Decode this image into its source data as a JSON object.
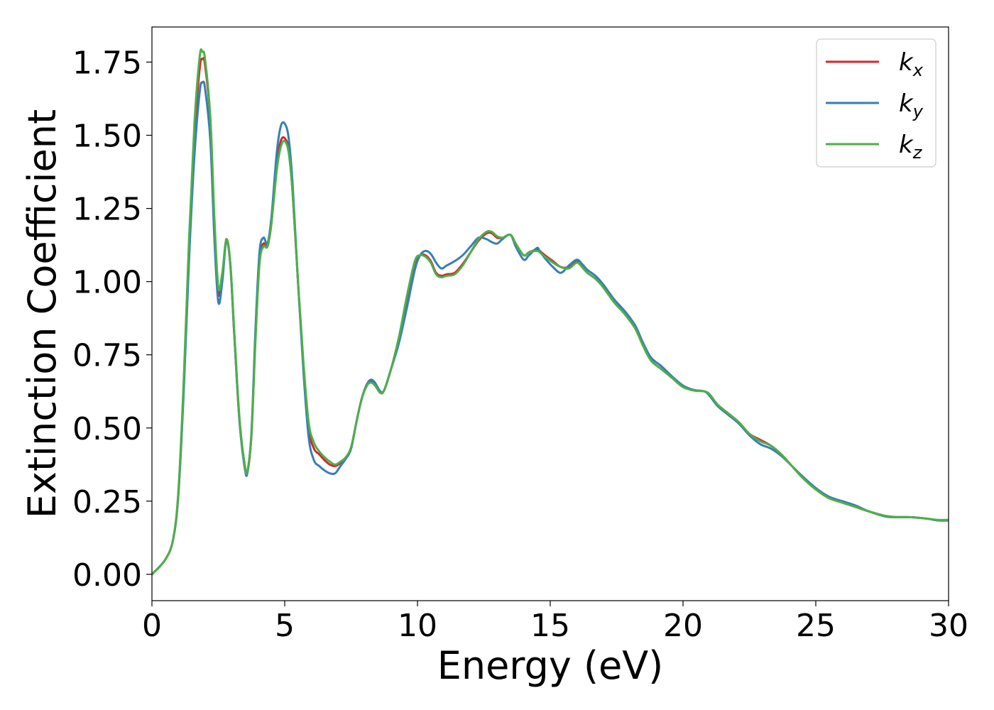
{
  "chart_data": {
    "type": "line",
    "title": "",
    "xlabel": "Energy (eV)",
    "ylabel": "Extinction Coefficient",
    "xlim": [
      0,
      30
    ],
    "ylim": [
      -0.09,
      1.87
    ],
    "xticks": [
      0,
      5,
      10,
      15,
      20,
      25,
      30
    ],
    "xtick_labels": [
      "0",
      "5",
      "10",
      "15",
      "20",
      "25",
      "30"
    ],
    "yticks": [
      0.0,
      0.25,
      0.5,
      0.75,
      1.0,
      1.25,
      1.5,
      1.75
    ],
    "ytick_labels": [
      "0.00",
      "0.25",
      "0.50",
      "0.75",
      "1.00",
      "1.25",
      "1.50",
      "1.75"
    ],
    "grid": false,
    "legend_position": "top-right",
    "series": [
      {
        "name": "k_x",
        "label_base": "k",
        "label_sub": "x",
        "color": "#d62728",
        "x": [
          0,
          0.5,
          0.8,
          1.0,
          1.2,
          1.4,
          1.6,
          1.8,
          1.9,
          2.0,
          2.2,
          2.35,
          2.5,
          2.65,
          2.8,
          2.95,
          3.1,
          3.3,
          3.5,
          3.6,
          3.75,
          3.9,
          4.05,
          4.2,
          4.35,
          4.5,
          4.7,
          4.85,
          5.0,
          5.15,
          5.3,
          5.5,
          5.7,
          5.9,
          6.1,
          6.3,
          6.5,
          6.7,
          6.9,
          7.1,
          7.3,
          7.5,
          7.7,
          7.9,
          8.1,
          8.25,
          8.4,
          8.6,
          8.75,
          9.0,
          9.3,
          9.6,
          9.9,
          10.1,
          10.3,
          10.5,
          10.7,
          10.9,
          11.1,
          11.4,
          11.7,
          12.0,
          12.3,
          12.6,
          12.8,
          13.0,
          13.2,
          13.5,
          13.7,
          14.0,
          14.2,
          14.5,
          14.6,
          14.8,
          15.1,
          15.4,
          15.7,
          16.0,
          16.2,
          16.4,
          16.7,
          17.0,
          17.4,
          17.8,
          18.2,
          18.5,
          18.8,
          19.2,
          19.6,
          20.0,
          20.4,
          20.8,
          21.0,
          21.3,
          21.7,
          22.1,
          22.5,
          22.9,
          23.3,
          23.7,
          24.1,
          24.5,
          25.0,
          25.5,
          26.0,
          26.5,
          27.0,
          27.6,
          28.0,
          28.6,
          29.2,
          29.6,
          30.0
        ],
        "y": [
          0.0,
          0.05,
          0.12,
          0.28,
          0.65,
          1.12,
          1.5,
          1.73,
          1.76,
          1.74,
          1.55,
          1.2,
          0.96,
          1.02,
          1.14,
          1.06,
          0.82,
          0.52,
          0.37,
          0.35,
          0.48,
          0.82,
          1.08,
          1.13,
          1.12,
          1.2,
          1.4,
          1.48,
          1.49,
          1.45,
          1.3,
          1.0,
          0.72,
          0.5,
          0.43,
          0.41,
          0.39,
          0.375,
          0.37,
          0.38,
          0.395,
          0.43,
          0.52,
          0.6,
          0.65,
          0.66,
          0.65,
          0.62,
          0.63,
          0.7,
          0.8,
          0.93,
          1.06,
          1.09,
          1.09,
          1.07,
          1.03,
          1.02,
          1.025,
          1.03,
          1.06,
          1.1,
          1.14,
          1.165,
          1.165,
          1.15,
          1.15,
          1.16,
          1.13,
          1.09,
          1.1,
          1.11,
          1.105,
          1.09,
          1.07,
          1.05,
          1.05,
          1.07,
          1.05,
          1.03,
          1.01,
          0.98,
          0.93,
          0.89,
          0.84,
          0.78,
          0.73,
          0.7,
          0.67,
          0.64,
          0.63,
          0.625,
          0.615,
          0.58,
          0.55,
          0.52,
          0.48,
          0.46,
          0.44,
          0.41,
          0.37,
          0.33,
          0.29,
          0.26,
          0.245,
          0.23,
          0.215,
          0.2,
          0.196,
          0.195,
          0.19,
          0.185,
          0.185
        ]
      },
      {
        "name": "k_y",
        "label_base": "k",
        "label_sub": "y",
        "color": "#377eb8",
        "x": [
          0,
          0.5,
          0.8,
          1.0,
          1.2,
          1.4,
          1.6,
          1.8,
          1.9,
          2.0,
          2.2,
          2.35,
          2.5,
          2.65,
          2.8,
          2.95,
          3.1,
          3.3,
          3.5,
          3.6,
          3.75,
          3.9,
          4.05,
          4.2,
          4.35,
          4.5,
          4.7,
          4.85,
          5.0,
          5.15,
          5.3,
          5.5,
          5.7,
          5.9,
          6.1,
          6.3,
          6.5,
          6.7,
          6.9,
          7.1,
          7.3,
          7.5,
          7.7,
          7.9,
          8.1,
          8.25,
          8.4,
          8.6,
          8.75,
          9.0,
          9.3,
          9.6,
          9.9,
          10.1,
          10.3,
          10.5,
          10.7,
          10.9,
          11.1,
          11.4,
          11.7,
          12.0,
          12.3,
          12.6,
          12.8,
          13.0,
          13.2,
          13.5,
          13.7,
          14.0,
          14.2,
          14.5,
          14.6,
          14.8,
          15.1,
          15.4,
          15.7,
          16.0,
          16.2,
          16.4,
          16.7,
          17.0,
          17.4,
          17.8,
          18.2,
          18.5,
          18.8,
          19.2,
          19.6,
          20.0,
          20.4,
          20.8,
          21.0,
          21.3,
          21.7,
          22.1,
          22.5,
          22.9,
          23.3,
          23.7,
          24.1,
          24.5,
          25.0,
          25.5,
          26.0,
          26.5,
          27.0,
          27.6,
          28.0,
          28.6,
          29.2,
          29.6,
          30.0
        ],
        "y": [
          0.0,
          0.05,
          0.12,
          0.28,
          0.63,
          1.08,
          1.43,
          1.65,
          1.68,
          1.66,
          1.48,
          1.15,
          0.93,
          1.0,
          1.14,
          1.06,
          0.82,
          0.52,
          0.36,
          0.35,
          0.49,
          0.84,
          1.1,
          1.15,
          1.13,
          1.22,
          1.44,
          1.53,
          1.54,
          1.49,
          1.33,
          1.0,
          0.7,
          0.47,
          0.39,
          0.37,
          0.355,
          0.345,
          0.345,
          0.37,
          0.395,
          0.43,
          0.52,
          0.6,
          0.65,
          0.665,
          0.655,
          0.625,
          0.63,
          0.7,
          0.79,
          0.91,
          1.04,
          1.09,
          1.105,
          1.095,
          1.065,
          1.045,
          1.055,
          1.07,
          1.09,
          1.12,
          1.15,
          1.145,
          1.135,
          1.13,
          1.145,
          1.16,
          1.12,
          1.075,
          1.09,
          1.115,
          1.105,
          1.08,
          1.05,
          1.03,
          1.055,
          1.075,
          1.06,
          1.04,
          1.02,
          0.99,
          0.94,
          0.9,
          0.85,
          0.79,
          0.74,
          0.71,
          0.675,
          0.645,
          0.63,
          0.625,
          0.61,
          0.575,
          0.545,
          0.515,
          0.475,
          0.445,
          0.43,
          0.405,
          0.37,
          0.335,
          0.295,
          0.265,
          0.25,
          0.235,
          0.215,
          0.198,
          0.195,
          0.195,
          0.19,
          0.184,
          0.184
        ]
      },
      {
        "name": "k_z",
        "label_base": "k",
        "label_sub": "z",
        "color": "#4daf4a",
        "x": [
          0,
          0.5,
          0.8,
          1.0,
          1.2,
          1.4,
          1.6,
          1.8,
          1.9,
          2.0,
          2.2,
          2.35,
          2.5,
          2.65,
          2.8,
          2.95,
          3.1,
          3.3,
          3.5,
          3.6,
          3.75,
          3.9,
          4.05,
          4.2,
          4.35,
          4.5,
          4.7,
          4.85,
          5.0,
          5.15,
          5.3,
          5.5,
          5.7,
          5.9,
          6.1,
          6.3,
          6.5,
          6.7,
          6.9,
          7.1,
          7.3,
          7.5,
          7.7,
          7.9,
          8.1,
          8.25,
          8.4,
          8.6,
          8.75,
          9.0,
          9.3,
          9.6,
          9.9,
          10.1,
          10.3,
          10.5,
          10.7,
          10.9,
          11.1,
          11.4,
          11.7,
          12.0,
          12.3,
          12.6,
          12.8,
          13.0,
          13.2,
          13.5,
          13.7,
          14.0,
          14.2,
          14.5,
          14.6,
          14.8,
          15.1,
          15.4,
          15.7,
          16.0,
          16.2,
          16.4,
          16.7,
          17.0,
          17.4,
          17.8,
          18.2,
          18.5,
          18.8,
          19.2,
          19.6,
          20.0,
          20.4,
          20.8,
          21.0,
          21.3,
          21.7,
          22.1,
          22.5,
          22.9,
          23.3,
          23.7,
          24.1,
          24.5,
          25.0,
          25.5,
          26.0,
          26.5,
          27.0,
          27.6,
          28.0,
          28.6,
          29.2,
          29.6,
          30.0
        ],
        "y": [
          0.0,
          0.05,
          0.12,
          0.29,
          0.67,
          1.15,
          1.54,
          1.77,
          1.785,
          1.76,
          1.56,
          1.22,
          0.98,
          1.03,
          1.145,
          1.065,
          0.83,
          0.53,
          0.37,
          0.355,
          0.48,
          0.8,
          1.06,
          1.12,
          1.12,
          1.2,
          1.38,
          1.46,
          1.48,
          1.44,
          1.3,
          1.0,
          0.73,
          0.52,
          0.45,
          0.42,
          0.4,
          0.385,
          0.375,
          0.385,
          0.4,
          0.435,
          0.52,
          0.6,
          0.645,
          0.655,
          0.645,
          0.62,
          0.63,
          0.7,
          0.81,
          0.95,
          1.07,
          1.09,
          1.085,
          1.065,
          1.025,
          1.015,
          1.02,
          1.025,
          1.055,
          1.1,
          1.145,
          1.17,
          1.17,
          1.155,
          1.15,
          1.16,
          1.13,
          1.09,
          1.1,
          1.105,
          1.1,
          1.085,
          1.065,
          1.05,
          1.045,
          1.065,
          1.05,
          1.03,
          1.01,
          0.98,
          0.93,
          0.89,
          0.84,
          0.78,
          0.73,
          0.7,
          0.67,
          0.64,
          0.628,
          0.625,
          0.615,
          0.58,
          0.55,
          0.52,
          0.48,
          0.455,
          0.44,
          0.41,
          0.37,
          0.33,
          0.29,
          0.26,
          0.245,
          0.23,
          0.215,
          0.2,
          0.196,
          0.195,
          0.19,
          0.186,
          0.186
        ]
      }
    ]
  }
}
